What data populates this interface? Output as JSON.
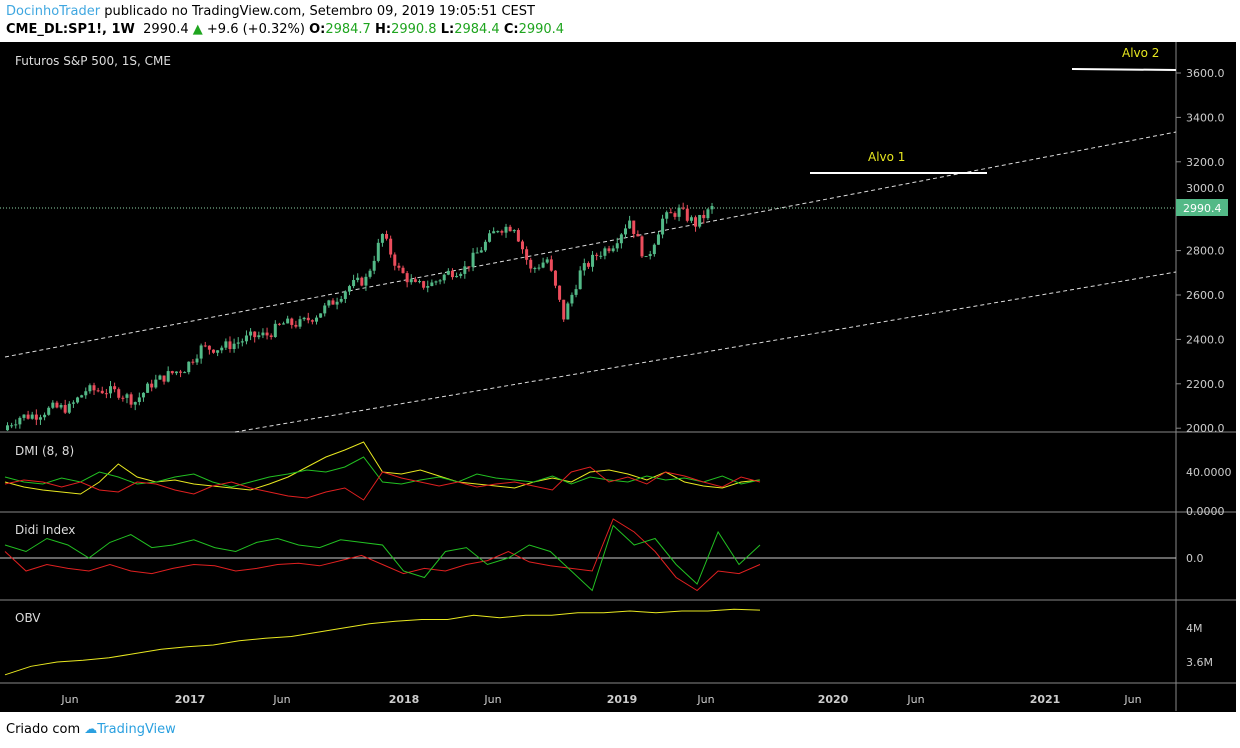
{
  "header": {
    "author": "DocinhoTrader",
    "published": "publicado no TradingView.com, Setembro 09, 2019 19:05:51 CEST",
    "symbol": "CME_DL:SP1!, 1W",
    "last": "2990.4",
    "change": "+9.6 (+0.32%)",
    "o_label": "O:",
    "o": "2984.7",
    "h_label": "H:",
    "h": "2990.8",
    "l_label": "L:",
    "l": "2984.4",
    "c_label": "C:",
    "c": "2990.4"
  },
  "colors": {
    "up": "#53b987",
    "down": "#eb4d5c",
    "bg": "#000000",
    "grid": "#c8c8c8"
  },
  "panes": {
    "main_title": "Futuros S&P 500, 1S, CME",
    "dmi_title": "DMI (8, 8)",
    "didi_title": "Didi Index",
    "obv_title": "OBV"
  },
  "annotations": {
    "alvo1": "Alvo 1",
    "alvo2": "Alvo 2",
    "price_label": "2990.4"
  },
  "price_axis": [
    "3600.0",
    "3400.0",
    "3200.0",
    "3000.0",
    "2800.0",
    "2600.0",
    "2400.0",
    "2200.0",
    "2000.0"
  ],
  "dmi_axis": [
    "40.0000",
    "0.0000"
  ],
  "didi_axis": [
    "0.0"
  ],
  "obv_axis": [
    "4M",
    "3.6M"
  ],
  "time_axis": [
    "Jun",
    "2017",
    "Jun",
    "2018",
    "Jun",
    "2019",
    "Jun",
    "2020",
    "Jun",
    "2021",
    "Jun"
  ],
  "footer": {
    "label": "Criado com",
    "brand": "TradingView"
  },
  "chart_data": {
    "type": "candlestick",
    "interval": "1W",
    "start": "2016-02",
    "monthly_close": [
      2000,
      2050,
      2060,
      2090,
      2090,
      2170,
      2170,
      2160,
      2120,
      2200,
      2240,
      2270,
      2360,
      2360,
      2380,
      2410,
      2420,
      2470,
      2470,
      2510,
      2570,
      2640,
      2670,
      2870,
      2710,
      2640,
      2650,
      2700,
      2720,
      2810,
      2900,
      2910,
      2710,
      2760,
      2500,
      2700,
      2780,
      2830,
      2940,
      2750,
      2940,
      2980,
      2920,
      2990
    ],
    "ylim": [
      2000,
      3600
    ],
    "dmi": {
      "plus_di": [
        35,
        30,
        28,
        34,
        30,
        40,
        35,
        28,
        30,
        35,
        38,
        30,
        25,
        30,
        35,
        38,
        42,
        40,
        45,
        55,
        30,
        28,
        32,
        35,
        30,
        38,
        34,
        32,
        30,
        36,
        28,
        35,
        32,
        30,
        36,
        32,
        34,
        30,
        36,
        28,
        32
      ],
      "minus_di": [
        28,
        32,
        30,
        25,
        30,
        22,
        20,
        30,
        28,
        22,
        18,
        26,
        30,
        24,
        20,
        16,
        14,
        20,
        24,
        12,
        40,
        34,
        30,
        26,
        30,
        25,
        28,
        30,
        26,
        22,
        40,
        45,
        30,
        35,
        28,
        40,
        36,
        30,
        25,
        35,
        30
      ],
      "adx": [
        30,
        25,
        22,
        20,
        18,
        30,
        48,
        35,
        30,
        32,
        28,
        26,
        24,
        22,
        28,
        35,
        45,
        55,
        62,
        70,
        40,
        38,
        42,
        36,
        30,
        28,
        26,
        24,
        30,
        34,
        30,
        40,
        42,
        38,
        32,
        40,
        30,
        26,
        24,
        30,
        32
      ]
    },
    "didi": {
      "green": [
        10,
        5,
        15,
        10,
        0,
        12,
        18,
        8,
        10,
        14,
        8,
        5,
        12,
        15,
        10,
        8,
        14,
        12,
        10,
        -10,
        -15,
        5,
        8,
        -5,
        0,
        10,
        5,
        -10,
        -25,
        25,
        10,
        15,
        -5,
        -20,
        20,
        -5,
        10
      ],
      "red": [
        5,
        -10,
        -5,
        -8,
        -10,
        -5,
        -10,
        -12,
        -8,
        -5,
        -6,
        -10,
        -8,
        -5,
        -4,
        -6,
        -2,
        2,
        -5,
        -12,
        -8,
        -10,
        -5,
        -2,
        5,
        -3,
        -6,
        -8,
        -10,
        30,
        20,
        5,
        -15,
        -25,
        -10,
        -12,
        -5
      ]
    },
    "obv": [
      3.45,
      3.55,
      3.6,
      3.62,
      3.65,
      3.7,
      3.75,
      3.78,
      3.8,
      3.85,
      3.88,
      3.9,
      3.95,
      4.0,
      4.05,
      4.08,
      4.1,
      4.1,
      4.15,
      4.12,
      4.15,
      4.15,
      4.18,
      4.18,
      4.2,
      4.18,
      4.2,
      4.2,
      4.22,
      4.21
    ]
  }
}
